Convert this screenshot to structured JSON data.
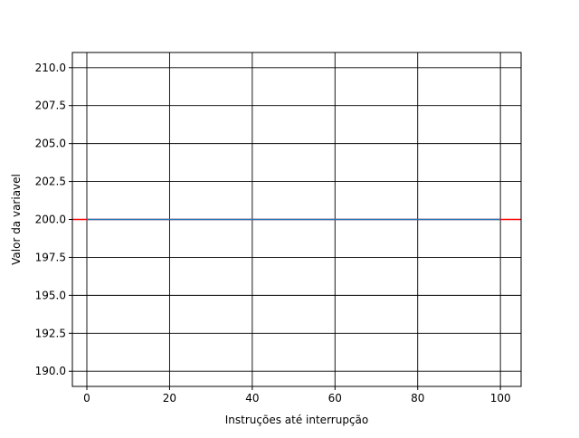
{
  "chart_data": {
    "type": "line",
    "title": "",
    "xlabel": "Instruções até interrupção",
    "ylabel": "Valor da variavel",
    "xlim": [
      -3.5,
      105
    ],
    "ylim": [
      189,
      211
    ],
    "x_ticks": [
      0,
      20,
      40,
      60,
      80,
      100
    ],
    "x_tick_labels": [
      "0",
      "20",
      "40",
      "60",
      "80",
      "100"
    ],
    "y_ticks": [
      190.0,
      192.5,
      195.0,
      197.5,
      200.0,
      202.5,
      205.0,
      207.5,
      210.0
    ],
    "y_tick_labels": [
      "190.0",
      "192.5",
      "195.0",
      "197.5",
      "200.0",
      "202.5",
      "205.0",
      "207.5",
      "210.0"
    ],
    "grid": true,
    "grid_color": "#000000",
    "series": [
      {
        "color": "#ff0000",
        "x": [
          -3.5,
          105
        ],
        "y": [
          200,
          200
        ]
      },
      {
        "color": "#1f77b4",
        "x": [
          0,
          100
        ],
        "y": [
          200,
          200
        ]
      }
    ]
  }
}
